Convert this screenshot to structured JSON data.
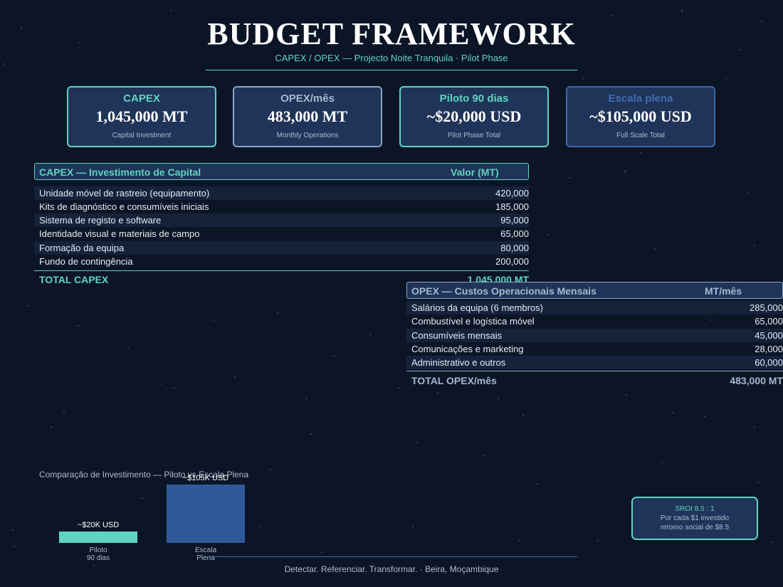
{
  "header": {
    "title": "BUDGET FRAMEWORK",
    "subtitle": "CAPEX / OPEX — Projecto Noite Tranquila  ·  Pilot Phase"
  },
  "cards": [
    {
      "label": "CAPEX",
      "value": "1,045,000 MT",
      "sub": "Capital Investment"
    },
    {
      "label": "OPEX/mês",
      "value": "483,000 MT",
      "sub": "Monthly Operations"
    },
    {
      "label": "Piloto 90 dias",
      "value": "~$20,000 USD",
      "sub": "Pilot Phase Total"
    },
    {
      "label": "Escala plena",
      "value": "~$105,000 USD",
      "sub": "Full Scale Total"
    }
  ],
  "capex": {
    "header_item": "CAPEX — Investimento de Capital",
    "header_value": "Valor (MT)",
    "rows": [
      {
        "item": "Unidade móvel de rastreio (equipamento)",
        "value": "420,000"
      },
      {
        "item": "Kits de diagnóstico e consumíveis iniciais",
        "value": "185,000"
      },
      {
        "item": "Sistema de registo e software",
        "value": "95,000"
      },
      {
        "item": "Identidade visual e materiais de campo",
        "value": "65,000"
      },
      {
        "item": "Formação da equipa",
        "value": "80,000"
      },
      {
        "item": "Fundo de contingência",
        "value": "200,000"
      }
    ],
    "total_label": "TOTAL CAPEX",
    "total_value": "1,045,000 MT"
  },
  "opex": {
    "header_item": "OPEX — Custos Operacionais Mensais",
    "header_value": "MT/mês",
    "rows": [
      {
        "item": "Salários da equipa (6 membros)",
        "value": "285,000"
      },
      {
        "item": "Combustível e logística móvel",
        "value": "65,000"
      },
      {
        "item": "Consumíveis mensais",
        "value": "45,000"
      },
      {
        "item": "Comunicações e marketing",
        "value": "28,000"
      },
      {
        "item": "Administrativo e outros",
        "value": "60,000"
      }
    ],
    "total_label": "TOTAL OPEX/mês",
    "total_value": "483,000 MT"
  },
  "chart_data": {
    "type": "bar",
    "title": "Comparação de Investimento — Piloto vs Escala Plena",
    "categories": [
      "Piloto 90 dias",
      "Escala Plena"
    ],
    "category_lines": [
      [
        "Piloto",
        "90 dias"
      ],
      [
        "Escala",
        "Plena"
      ]
    ],
    "values": [
      20000,
      105000
    ],
    "value_labels": [
      "~$20K USD",
      "~$105K USD"
    ],
    "colors": [
      "#5fd4c0",
      "#2f5a9a"
    ],
    "unit": "USD"
  },
  "sroi": {
    "line1": "SROI  8.5 : 1",
    "line2": "Por cada $1 investido",
    "line3": "retorno social de $8.5"
  },
  "footer": {
    "text": "Detectar. Referenciar. Transformar.  ·  Beira, Moçambique"
  }
}
